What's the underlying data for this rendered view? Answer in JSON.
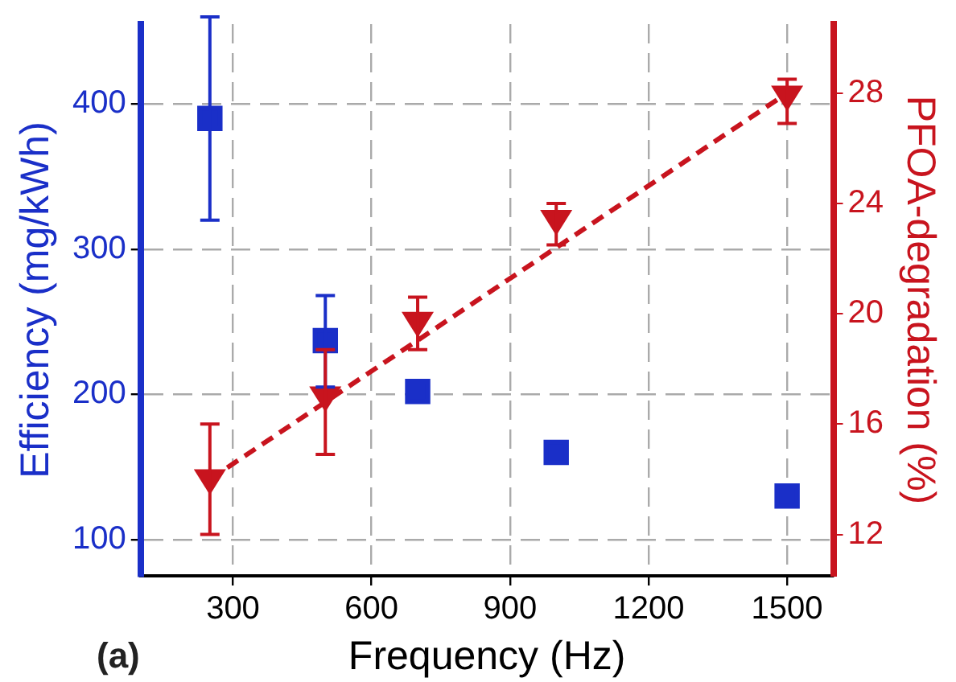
{
  "chart_data": {
    "type": "scatter",
    "xlabel": "Frequency (Hz)",
    "ylabel": "Efficiency (mg/kWh)",
    "y2label": "PFOA-degradation (%)",
    "xlim": [
      100,
      1600
    ],
    "xticks": [
      300,
      600,
      900,
      1200,
      1500
    ],
    "ylim": [
      75,
      455
    ],
    "yticks": [
      100,
      200,
      300,
      400
    ],
    "y2lim": [
      10.5,
      30.5
    ],
    "y2ticks": [
      12,
      16,
      20,
      24,
      28
    ],
    "grid": true,
    "annotations": [
      "(a)"
    ],
    "series": [
      {
        "type": "scatter",
        "color": "#1a2fc8",
        "marker": "square",
        "x": [
          250,
          500,
          700,
          1000,
          1500
        ],
        "values": [
          390,
          237,
          202,
          160,
          130
        ],
        "errors": [
          [
            320,
            460
          ],
          [
            205,
            268
          ],
          null,
          null,
          null
        ]
      },
      {
        "type": "scatter",
        "axis": "y2",
        "color": "#c8141e",
        "marker": "triangle",
        "x": [
          250,
          500,
          700,
          1000,
          1500
        ],
        "values": [
          13.9,
          16.9,
          19.6,
          23.3,
          27.8
        ],
        "errors": [
          [
            12,
            16
          ],
          [
            14.9,
            18.7
          ],
          [
            18.7,
            20.6
          ],
          [
            22.5,
            24
          ],
          [
            26.9,
            28.5
          ]
        ]
      },
      {
        "type": "line",
        "axis": "y2",
        "color": "#c8141e",
        "marker": "none",
        "line_style": "dashed",
        "x": [
          250,
          1500
        ],
        "values": [
          14,
          28
        ]
      }
    ]
  }
}
